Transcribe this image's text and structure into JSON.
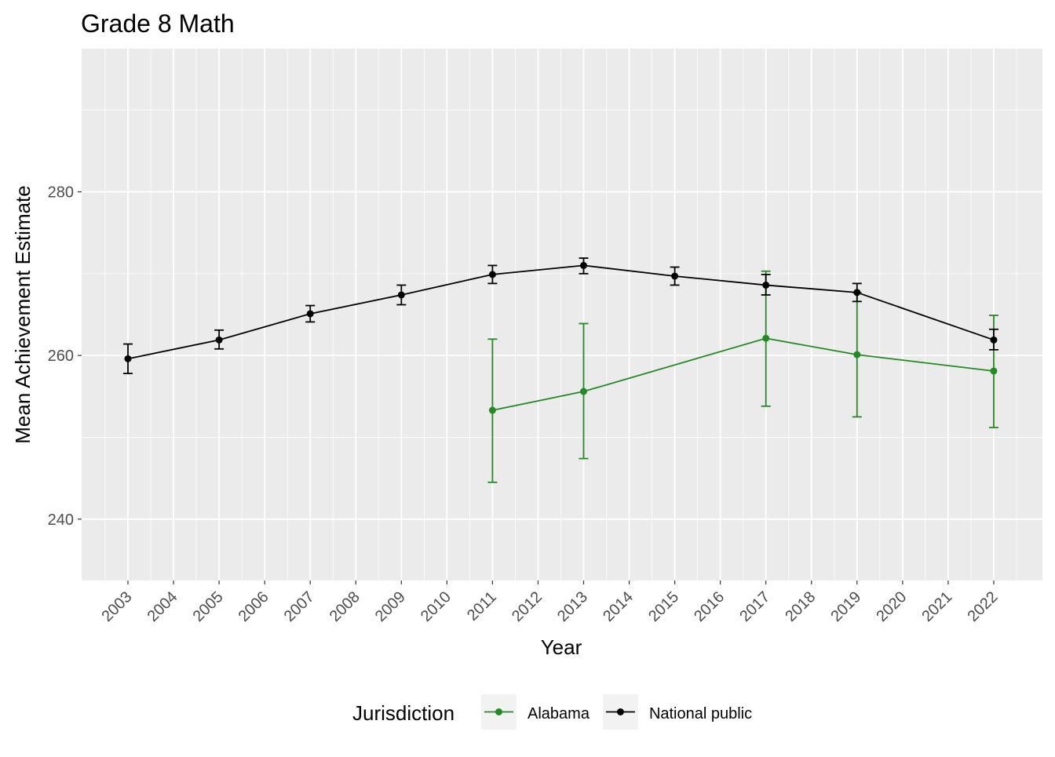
{
  "chart_data": {
    "type": "line",
    "title": "Grade 8 Math",
    "xlabel": "Year",
    "ylabel": "Mean Achievement Estimate",
    "x_categories": [
      "2003",
      "2004",
      "2005",
      "2006",
      "2007",
      "2008",
      "2009",
      "2010",
      "2011",
      "2012",
      "2013",
      "2014",
      "2015",
      "2016",
      "2017",
      "2018",
      "2019",
      "2020",
      "2021",
      "2022"
    ],
    "y_ticks": [
      240,
      260,
      280
    ],
    "ylim": [
      232.5,
      297.5
    ],
    "grid": true,
    "legend_position": "bottom",
    "legend_title": "Jurisdiction",
    "series": [
      {
        "name": "Alabama",
        "color": "#228B22",
        "points": [
          {
            "x": "2011",
            "y": 253.3,
            "lower": 244.5,
            "upper": 262.0
          },
          {
            "x": "2013",
            "y": 255.6,
            "lower": 247.4,
            "upper": 263.9
          },
          {
            "x": "2017",
            "y": 262.1,
            "lower": 253.8,
            "upper": 270.3
          },
          {
            "x": "2019",
            "y": 260.1,
            "lower": 252.5,
            "upper": 267.7
          },
          {
            "x": "2022",
            "y": 258.1,
            "lower": 251.2,
            "upper": 264.9
          }
        ]
      },
      {
        "name": "National public",
        "color": "#000000",
        "points": [
          {
            "x": "2003",
            "y": 259.6,
            "lower": 257.8,
            "upper": 261.4
          },
          {
            "x": "2005",
            "y": 261.9,
            "lower": 260.8,
            "upper": 263.1
          },
          {
            "x": "2007",
            "y": 265.1,
            "lower": 264.1,
            "upper": 266.1
          },
          {
            "x": "2009",
            "y": 267.4,
            "lower": 266.2,
            "upper": 268.6
          },
          {
            "x": "2011",
            "y": 269.9,
            "lower": 268.8,
            "upper": 271.0
          },
          {
            "x": "2013",
            "y": 271.0,
            "lower": 270.0,
            "upper": 271.9
          },
          {
            "x": "2015",
            "y": 269.7,
            "lower": 268.6,
            "upper": 270.8
          },
          {
            "x": "2017",
            "y": 268.6,
            "lower": 267.4,
            "upper": 269.9
          },
          {
            "x": "2019",
            "y": 267.7,
            "lower": 266.6,
            "upper": 268.8
          },
          {
            "x": "2022",
            "y": 261.9,
            "lower": 260.7,
            "upper": 263.2
          }
        ]
      }
    ]
  }
}
